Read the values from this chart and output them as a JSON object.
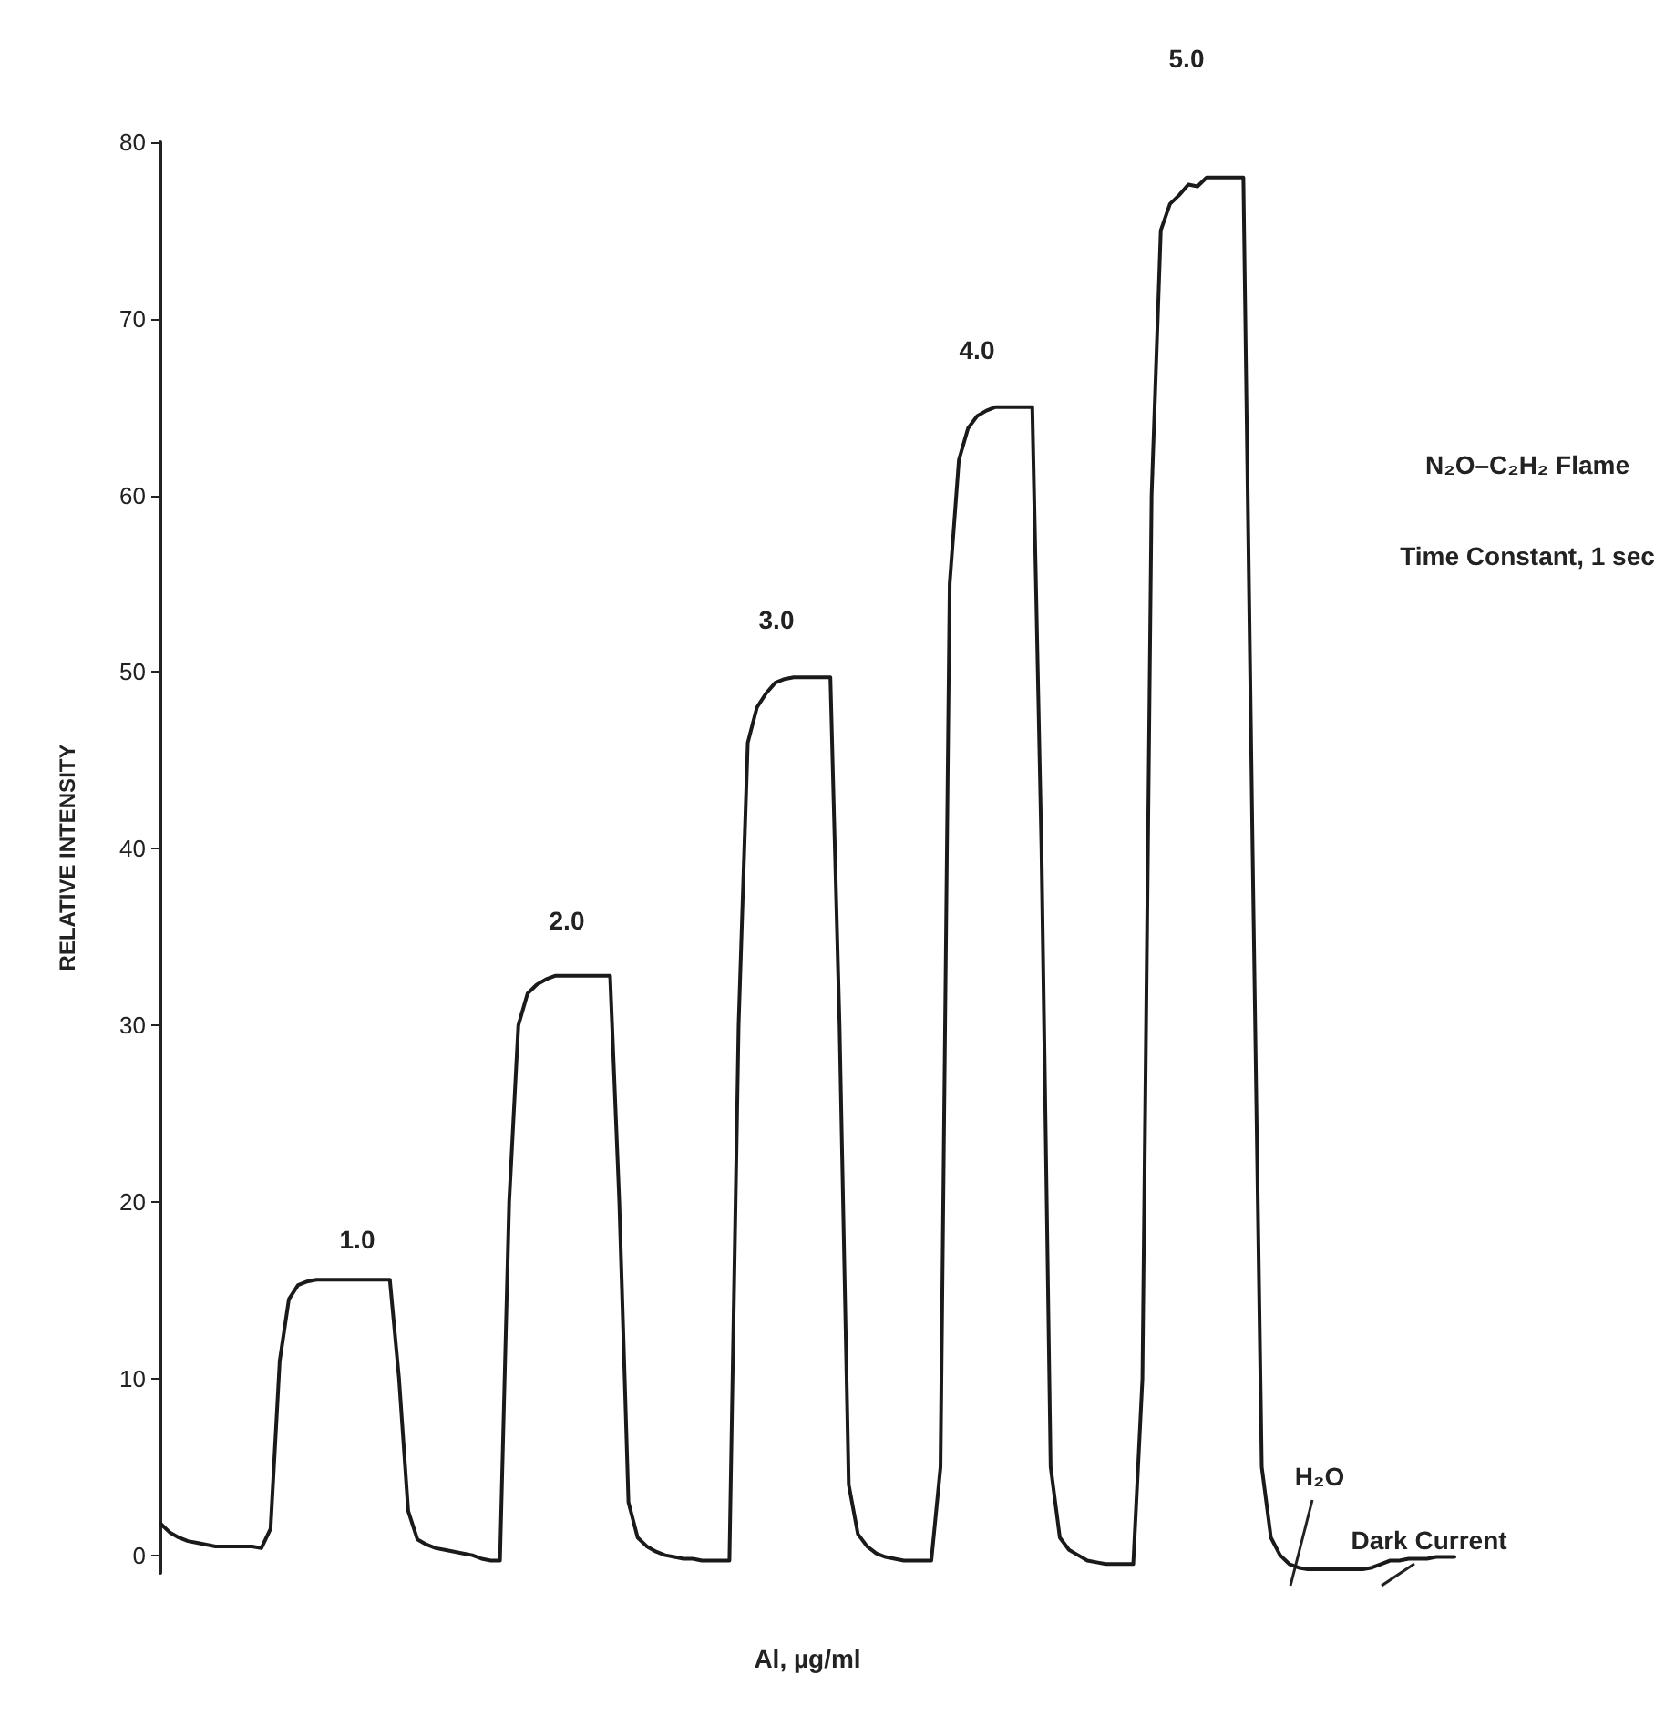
{
  "chart_data": {
    "type": "line",
    "xlabel": "Al, µg/ml",
    "ylabel": "RELATIVE INTENSITY",
    "categories": [
      null,
      null,
      null,
      null,
      null,
      null,
      null,
      null,
      null,
      null,
      null,
      null,
      null,
      null,
      null,
      null,
      null,
      null,
      null,
      null,
      null,
      null,
      null,
      null,
      null,
      null,
      null,
      null,
      null,
      null,
      null,
      null,
      null,
      null,
      null,
      null,
      null,
      null,
      null,
      null,
      null,
      null,
      null,
      null,
      null,
      null,
      null,
      null,
      null,
      null,
      null,
      null,
      null,
      null,
      null,
      null,
      null,
      null,
      null,
      null,
      null,
      null,
      null,
      null,
      null,
      null,
      null,
      null,
      null,
      null,
      null,
      null,
      null,
      null,
      null,
      null,
      null,
      null,
      null,
      null,
      null,
      null,
      null,
      null,
      null,
      null,
      null,
      null,
      null,
      null,
      null,
      null,
      null,
      null,
      null,
      null,
      null,
      null,
      null,
      null,
      null,
      null,
      null,
      null,
      null,
      null,
      null,
      null,
      null,
      null,
      null,
      null,
      null,
      null,
      null,
      null,
      null,
      null,
      null,
      null,
      null,
      null,
      null,
      null,
      null,
      null,
      null,
      null,
      null,
      null,
      null,
      null,
      null,
      null,
      null,
      null,
      null,
      null,
      null,
      null,
      null,
      null
    ],
    "series": [
      {
        "color": "#1a1a1a",
        "values": [
          1.8,
          1.3,
          1.0,
          0.8,
          0.7,
          0.6,
          0.5,
          0.5,
          0.5,
          0.5,
          0.5,
          0.4,
          1.5,
          11,
          14.5,
          15.3,
          15.5,
          15.6,
          15.6,
          15.6,
          15.6,
          15.6,
          15.6,
          15.6,
          15.6,
          15.6,
          10,
          2.5,
          0.9,
          0.6,
          0.4,
          0.3,
          0.2,
          0.1,
          0,
          -0.2,
          -0.3,
          -0.3,
          20,
          30,
          31.8,
          32.3,
          32.6,
          32.8,
          32.8,
          32.8,
          32.8,
          32.8,
          32.8,
          32.8,
          20,
          3,
          1.0,
          0.5,
          0.2,
          0,
          -0.1,
          -0.2,
          -0.2,
          -0.3,
          -0.3,
          -0.3,
          -0.3,
          30,
          46,
          48,
          48.8,
          49.4,
          49.6,
          49.7,
          49.7,
          49.7,
          49.7,
          49.7,
          30,
          4,
          1.2,
          0.5,
          0.1,
          -0.1,
          -0.2,
          -0.3,
          -0.3,
          -0.3,
          -0.3,
          5,
          55,
          62,
          63.8,
          64.5,
          64.8,
          65,
          65,
          65,
          65,
          65,
          40,
          5,
          1,
          0.3,
          0,
          -0.3,
          -0.4,
          -0.5,
          -0.5,
          -0.5,
          -0.5,
          10,
          60,
          75,
          76.5,
          77,
          77.6,
          77.5,
          78,
          78,
          78,
          78,
          78,
          40,
          5,
          1,
          0,
          -0.5,
          -0.7,
          -0.8,
          -0.8,
          -0.8,
          -0.8,
          -0.8,
          -0.8,
          -0.8,
          -0.7,
          -0.5,
          -0.3,
          -0.3,
          -0.2,
          -0.2,
          -0.2,
          -0.1,
          -0.1,
          -0.1
        ]
      }
    ],
    "ylim": [
      -1,
      80
    ],
    "yticks": [
      0,
      10,
      20,
      30,
      40,
      50,
      60,
      70,
      80
    ],
    "tick_labels": "y",
    "line_style": "solid",
    "annotations": [
      "1.0",
      "2.0",
      "3.0",
      "4.0",
      "5.0",
      "N₂O–C₂H₂ Flame",
      "Time Constant, 1 sec",
      "H₂O",
      "Dark Current"
    ]
  }
}
